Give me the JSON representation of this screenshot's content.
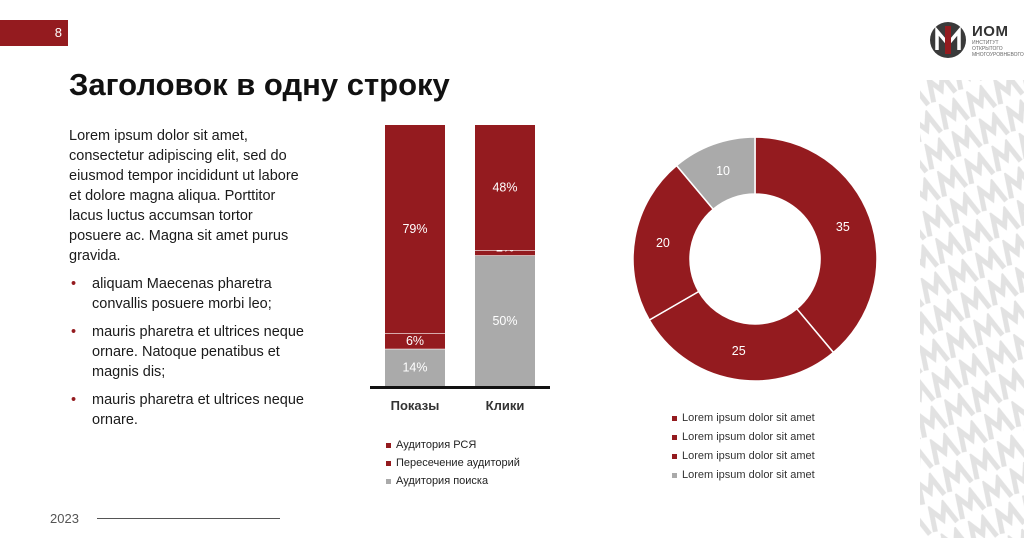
{
  "page_number": "8",
  "logo": {
    "name": "ИОМ",
    "subtitle": "ИНСТИТУТ ОТКРЫТОГО МНОГОУРОВНЕВОГО"
  },
  "title": "Заголовок в одну строку",
  "body": {
    "paragraph": "Lorem ipsum dolor sit amet, consectetur adipiscing elit, sed do eiusmod tempor incididunt ut labore et dolore magna aliqua. Porttitor lacus luctus accumsan tortor posuere ac. Magna sit amet purus gravida.",
    "bullets": [
      "aliquam Maecenas pharetra convallis posuere morbi leo;",
      "mauris pharetra et ultrices neque ornare. Natoque penatibus et magnis dis;",
      "mauris pharetra et ultrices neque ornare."
    ]
  },
  "footer": {
    "year": "2023"
  },
  "colors": {
    "red": "#941b1f",
    "gray": "#aaaaaa",
    "pattern": "#e4e4e4"
  },
  "chart_data": [
    {
      "type": "bar",
      "stacked": true,
      "normalized": true,
      "categories": [
        "Показы",
        "Клики"
      ],
      "series": [
        {
          "name": "Аудитория поиска",
          "values": [
            14,
            50
          ],
          "labels": [
            "14%",
            "50%"
          ],
          "color": "#aaaaaa"
        },
        {
          "name": "Пересечение аудиторий",
          "values": [
            6,
            2
          ],
          "labels": [
            "6%",
            "2%"
          ],
          "color": "#941b1f"
        },
        {
          "name": "Аудитория РСЯ",
          "values": [
            79,
            48
          ],
          "labels": [
            "79%",
            "48%"
          ],
          "color": "#941b1f"
        }
      ],
      "legend_order": [
        "Аудитория РСЯ",
        "Пересечение аудиторий",
        "Аудитория поиска"
      ],
      "legend": "bottom",
      "ylim": [
        0,
        100
      ],
      "grid": false
    },
    {
      "type": "pie",
      "donut": true,
      "values": [
        35,
        25,
        20,
        10
      ],
      "labels": [
        "35",
        "25",
        "20",
        "10"
      ],
      "colors": [
        "#941b1f",
        "#941b1f",
        "#941b1f",
        "#aaaaaa"
      ],
      "legend": [
        {
          "label": "Lorem ipsum dolor sit amet",
          "color": "#941b1f"
        },
        {
          "label": "Lorem ipsum dolor sit amet",
          "color": "#941b1f"
        },
        {
          "label": "Lorem ipsum dolor sit amet",
          "color": "#941b1f"
        },
        {
          "label": "Lorem ipsum dolor sit amet",
          "color": "#aaaaaa"
        }
      ],
      "legend_position": "bottom"
    }
  ]
}
